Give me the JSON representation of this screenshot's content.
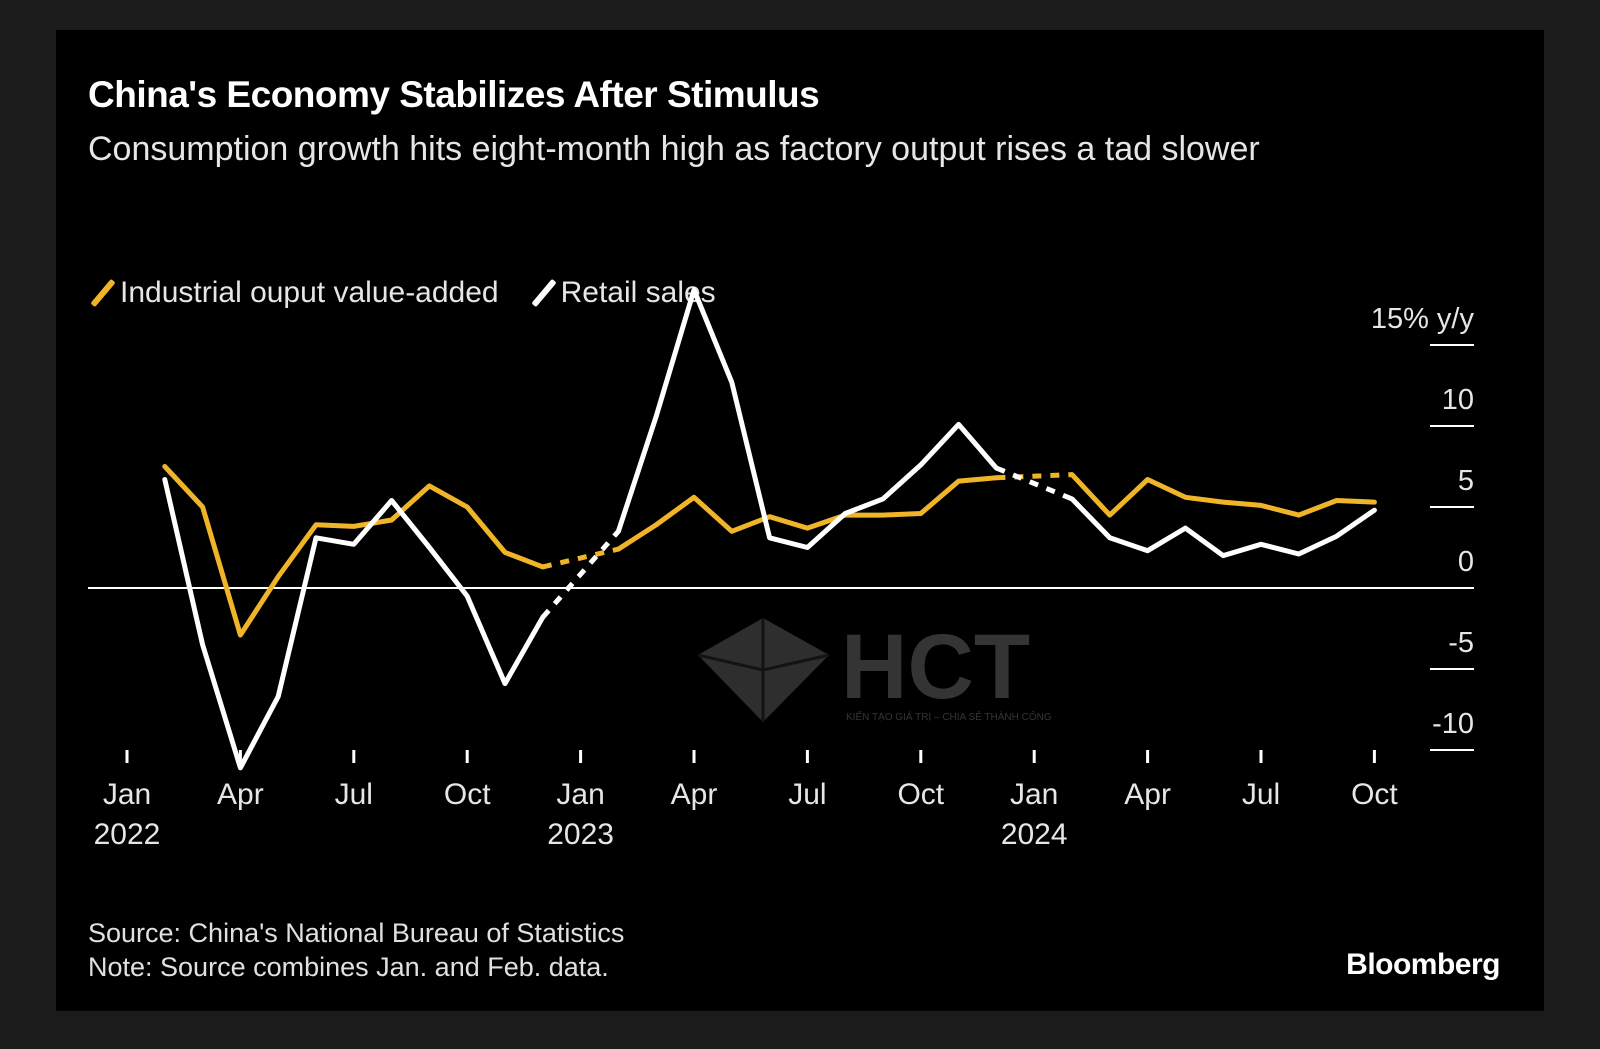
{
  "title": "China's Economy Stabilizes After Stimulus",
  "subtitle": "Consumption growth hits eight-month high as factory output rises a tad slower",
  "footer": {
    "source": "Source: China's National Bureau of Statistics",
    "note": "Note: Source combines Jan. and Feb. data."
  },
  "brand": "Bloomberg",
  "watermark": {
    "text": "HCT",
    "tagline": "KIẾN TẠO GIÁ TRỊ – CHIA SẺ THÀNH CÔNG"
  },
  "colors": {
    "industrial": "#f0b429",
    "retail": "#ffffff",
    "background": "#000000",
    "zero_line": "#ffffff"
  },
  "legend": [
    {
      "label": "Industrial ouput value-added",
      "color": "#f0b429"
    },
    {
      "label": "Retail sales",
      "color": "#ffffff"
    }
  ],
  "chart_data": {
    "type": "line",
    "title": "China's Economy Stabilizes After Stimulus",
    "y_unit_label": "% y/y",
    "ylim": [
      -10,
      15
    ],
    "y_ticks": [
      15,
      10,
      5,
      0,
      -5,
      -10
    ],
    "y_tick_labels": [
      "15% y/y",
      "10",
      "5",
      "0",
      "-5",
      "-10"
    ],
    "x_ticks": [
      {
        "month": 1,
        "label": "Jan",
        "year_label": "2022"
      },
      {
        "month": 4,
        "label": "Apr",
        "year_label": ""
      },
      {
        "month": 7,
        "label": "Jul",
        "year_label": ""
      },
      {
        "month": 10,
        "label": "Oct",
        "year_label": ""
      },
      {
        "month": 13,
        "label": "Jan",
        "year_label": "2023"
      },
      {
        "month": 16,
        "label": "Apr",
        "year_label": ""
      },
      {
        "month": 19,
        "label": "Jul",
        "year_label": ""
      },
      {
        "month": 22,
        "label": "Oct",
        "year_label": ""
      },
      {
        "month": 25,
        "label": "Jan",
        "year_label": "2024"
      },
      {
        "month": 28,
        "label": "Apr",
        "year_label": ""
      },
      {
        "month": 31,
        "label": "Jul",
        "year_label": ""
      },
      {
        "month": 34,
        "label": "Oct",
        "year_label": ""
      }
    ],
    "x_note": "month index: 1 = Jan 2022 ... 34 = Oct 2024; combined Jan-Feb values plotted at Feb",
    "series": [
      {
        "name": "Industrial ouput value-added",
        "color": "#f0b429",
        "segments": [
          {
            "style": "solid",
            "points": [
              [
                2,
                7.5
              ],
              [
                3,
                5.0
              ],
              [
                4,
                -2.9
              ],
              [
                5,
                0.7
              ],
              [
                6,
                3.9
              ],
              [
                7,
                3.8
              ],
              [
                8,
                4.2
              ],
              [
                9,
                6.3
              ],
              [
                10,
                5.0
              ],
              [
                11,
                2.2
              ],
              [
                12,
                1.3
              ]
            ]
          },
          {
            "style": "dashed",
            "points": [
              [
                12,
                1.3
              ],
              [
                14,
                2.4
              ]
            ]
          },
          {
            "style": "solid",
            "points": [
              [
                14,
                2.4
              ],
              [
                15,
                3.9
              ],
              [
                16,
                5.6
              ],
              [
                17,
                3.5
              ],
              [
                18,
                4.4
              ],
              [
                19,
                3.7
              ],
              [
                20,
                4.5
              ],
              [
                21,
                4.5
              ],
              [
                22,
                4.6
              ],
              [
                23,
                6.6
              ],
              [
                24,
                6.8
              ]
            ]
          },
          {
            "style": "dashed",
            "points": [
              [
                24,
                6.8
              ],
              [
                26,
                7.0
              ]
            ]
          },
          {
            "style": "solid",
            "points": [
              [
                26,
                7.0
              ],
              [
                27,
                4.5
              ],
              [
                28,
                6.7
              ],
              [
                29,
                5.6
              ],
              [
                30,
                5.3
              ],
              [
                31,
                5.1
              ],
              [
                32,
                4.5
              ],
              [
                33,
                5.4
              ],
              [
                34,
                5.3
              ]
            ]
          }
        ]
      },
      {
        "name": "Retail sales",
        "color": "#ffffff",
        "segments": [
          {
            "style": "solid",
            "points": [
              [
                2,
                6.7
              ],
              [
                3,
                -3.5
              ],
              [
                4,
                -11.1
              ],
              [
                5,
                -6.7
              ],
              [
                6,
                3.1
              ],
              [
                7,
                2.7
              ],
              [
                8,
                5.4
              ],
              [
                9,
                2.5
              ],
              [
                10,
                -0.5
              ],
              [
                11,
                -5.9
              ],
              [
                12,
                -1.8
              ]
            ]
          },
          {
            "style": "dashed",
            "points": [
              [
                12,
                -1.8
              ],
              [
                14,
                3.5
              ]
            ]
          },
          {
            "style": "solid",
            "points": [
              [
                14,
                3.5
              ],
              [
                15,
                10.6
              ],
              [
                16,
                18.4
              ],
              [
                17,
                12.7
              ],
              [
                18,
                3.1
              ],
              [
                19,
                2.5
              ],
              [
                20,
                4.6
              ],
              [
                21,
                5.5
              ],
              [
                22,
                7.6
              ],
              [
                23,
                10.1
              ],
              [
                24,
                7.4
              ]
            ]
          },
          {
            "style": "dashed",
            "points": [
              [
                24,
                7.4
              ],
              [
                26,
                5.5
              ]
            ]
          },
          {
            "style": "solid",
            "points": [
              [
                26,
                5.5
              ],
              [
                27,
                3.1
              ],
              [
                28,
                2.3
              ],
              [
                29,
                3.7
              ],
              [
                30,
                2.0
              ],
              [
                31,
                2.7
              ],
              [
                32,
                2.1
              ],
              [
                33,
                3.2
              ],
              [
                34,
                4.8
              ]
            ]
          }
        ]
      }
    ]
  }
}
